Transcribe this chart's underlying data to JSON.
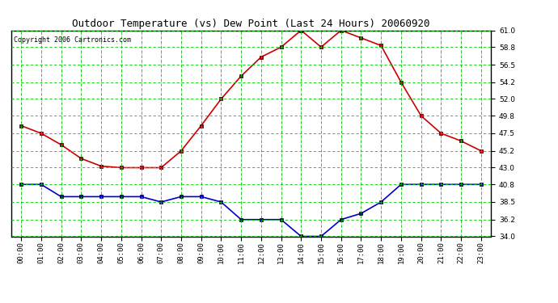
{
  "title": "Outdoor Temperature (vs) Dew Point (Last 24 Hours) 20060920",
  "copyright": "Copyright 2006 Cartronics.com",
  "hours": [
    0,
    1,
    2,
    3,
    4,
    5,
    6,
    7,
    8,
    9,
    10,
    11,
    12,
    13,
    14,
    15,
    16,
    17,
    18,
    19,
    20,
    21,
    22,
    23
  ],
  "hour_labels": [
    "00:00",
    "01:00",
    "02:00",
    "03:00",
    "04:00",
    "05:00",
    "06:00",
    "07:00",
    "08:00",
    "09:00",
    "10:00",
    "11:00",
    "12:00",
    "13:00",
    "14:00",
    "15:00",
    "16:00",
    "17:00",
    "18:00",
    "19:00",
    "20:00",
    "21:00",
    "22:00",
    "23:00"
  ],
  "temp": [
    48.5,
    47.5,
    46.0,
    44.2,
    43.2,
    43.0,
    43.0,
    43.0,
    45.2,
    48.5,
    52.0,
    55.0,
    57.5,
    58.8,
    61.0,
    58.8,
    61.0,
    60.0,
    59.0,
    54.2,
    49.8,
    47.5,
    46.5,
    45.2
  ],
  "dew": [
    40.8,
    40.8,
    39.2,
    39.2,
    39.2,
    39.2,
    39.2,
    38.5,
    39.2,
    39.2,
    38.5,
    36.2,
    36.2,
    36.2,
    34.0,
    34.0,
    36.2,
    37.0,
    38.5,
    40.8,
    40.8,
    40.8,
    40.8,
    40.8
  ],
  "temp_color": "#cc0000",
  "dew_color": "#0000cc",
  "bg_color": "#ffffff",
  "grid_color": "#00cc00",
  "ylim": [
    34.0,
    61.0
  ],
  "yticks": [
    34.0,
    36.2,
    38.5,
    40.8,
    43.0,
    45.2,
    47.5,
    49.8,
    52.0,
    54.2,
    56.5,
    58.8,
    61.0
  ],
  "marker": "s",
  "marker_size": 2.5,
  "line_width": 1.2,
  "title_fontsize": 9,
  "tick_fontsize": 6.5,
  "copyright_fontsize": 6
}
